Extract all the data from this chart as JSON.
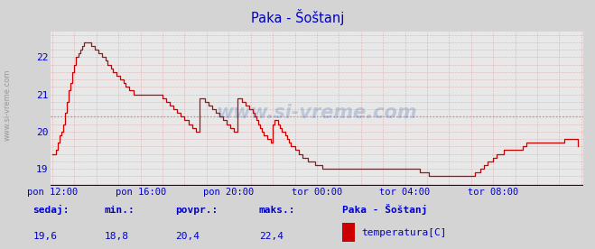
{
  "title": "Paka - Šoštanj",
  "bg_color": "#d4d4d4",
  "plot_bg_color": "#e8e8e8",
  "dashed_line_color": "#e08080",
  "line_color": "#cc0000",
  "axis_color": "#0000cc",
  "bottom_line_color": "#0000cc",
  "x_tick_labels": [
    "pon 12:00",
    "pon 16:00",
    "pon 20:00",
    "tor 00:00",
    "tor 04:00",
    "tor 08:00"
  ],
  "x_tick_positions": [
    0,
    48,
    96,
    144,
    192,
    240
  ],
  "ylim": [
    18.55,
    22.7
  ],
  "y_ticks": [
    19,
    20,
    21,
    22
  ],
  "xlim": [
    -1,
    289
  ],
  "dashed_y": 20.4,
  "watermark": "www.si-vreme.com",
  "sedaj_label": "sedaj:",
  "sedaj": "19,6",
  "min_label": "min.:",
  "min_val": "18,8",
  "povpr_label": "povpr.:",
  "povpr": "20,4",
  "maks_label": "maks.:",
  "maks": "22,4",
  "legend_station": "Paka - Šoštanj",
  "legend_sublabel": "temperatura[C]",
  "legend_color": "#cc0000",
  "sidebar_text": "www.si-vreme.com",
  "temperature_data": [
    19.4,
    19.4,
    19.5,
    19.7,
    19.9,
    20.0,
    20.2,
    20.5,
    20.8,
    21.1,
    21.3,
    21.6,
    21.8,
    22.0,
    22.1,
    22.2,
    22.3,
    22.4,
    22.4,
    22.4,
    22.4,
    22.3,
    22.3,
    22.2,
    22.2,
    22.1,
    22.1,
    22.0,
    22.0,
    21.9,
    21.8,
    21.8,
    21.7,
    21.6,
    21.6,
    21.5,
    21.5,
    21.4,
    21.4,
    21.3,
    21.2,
    21.2,
    21.1,
    21.1,
    21.0,
    21.0,
    21.0,
    21.0,
    21.0,
    21.0,
    21.0,
    21.0,
    21.0,
    21.0,
    21.0,
    21.0,
    21.0,
    21.0,
    21.0,
    21.0,
    20.9,
    20.9,
    20.8,
    20.8,
    20.7,
    20.7,
    20.6,
    20.6,
    20.5,
    20.5,
    20.4,
    20.4,
    20.3,
    20.3,
    20.2,
    20.2,
    20.1,
    20.1,
    20.0,
    20.0,
    20.9,
    20.9,
    20.9,
    20.8,
    20.8,
    20.7,
    20.7,
    20.6,
    20.6,
    20.5,
    20.5,
    20.4,
    20.4,
    20.3,
    20.3,
    20.2,
    20.2,
    20.1,
    20.1,
    20.0,
    20.0,
    20.9,
    20.9,
    20.8,
    20.8,
    20.7,
    20.7,
    20.6,
    20.6,
    20.5,
    20.4,
    20.3,
    20.2,
    20.1,
    20.0,
    19.9,
    19.9,
    19.8,
    19.8,
    19.7,
    20.2,
    20.3,
    20.3,
    20.2,
    20.1,
    20.0,
    20.0,
    19.9,
    19.8,
    19.7,
    19.6,
    19.6,
    19.5,
    19.5,
    19.4,
    19.4,
    19.3,
    19.3,
    19.3,
    19.2,
    19.2,
    19.2,
    19.2,
    19.1,
    19.1,
    19.1,
    19.1,
    19.0,
    19.0,
    19.0,
    19.0,
    19.0,
    19.0,
    19.0,
    19.0,
    19.0,
    19.0,
    19.0,
    19.0,
    19.0,
    19.0,
    19.0,
    19.0,
    19.0,
    19.0,
    19.0,
    19.0,
    19.0,
    19.0,
    19.0,
    19.0,
    19.0,
    19.0,
    19.0,
    19.0,
    19.0,
    19.0,
    19.0,
    19.0,
    19.0,
    19.0,
    19.0,
    19.0,
    19.0,
    19.0,
    19.0,
    19.0,
    19.0,
    19.0,
    19.0,
    19.0,
    19.0,
    19.0,
    19.0,
    19.0,
    19.0,
    19.0,
    19.0,
    19.0,
    19.0,
    18.9,
    18.9,
    18.9,
    18.9,
    18.9,
    18.8,
    18.8,
    18.8,
    18.8,
    18.8,
    18.8,
    18.8,
    18.8,
    18.8,
    18.8,
    18.8,
    18.8,
    18.8,
    18.8,
    18.8,
    18.8,
    18.8,
    18.8,
    18.8,
    18.8,
    18.8,
    18.8,
    18.8,
    18.8,
    18.8,
    18.9,
    18.9,
    18.9,
    19.0,
    19.0,
    19.1,
    19.1,
    19.2,
    19.2,
    19.2,
    19.3,
    19.3,
    19.4,
    19.4,
    19.4,
    19.4,
    19.5,
    19.5,
    19.5,
    19.5,
    19.5,
    19.5,
    19.5,
    19.5,
    19.5,
    19.5,
    19.6,
    19.6,
    19.7,
    19.7,
    19.7,
    19.7,
    19.7,
    19.7,
    19.7,
    19.7,
    19.7,
    19.7,
    19.7,
    19.7,
    19.7,
    19.7,
    19.7,
    19.7,
    19.7,
    19.7,
    19.7,
    19.7,
    19.7,
    19.8,
    19.8,
    19.8,
    19.8,
    19.8,
    19.8,
    19.8,
    19.6
  ]
}
